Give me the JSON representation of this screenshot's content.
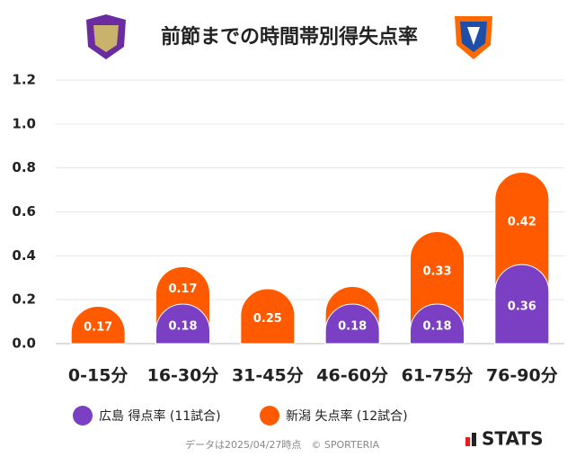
{
  "chart_data": {
    "type": "bar",
    "stacked": true,
    "title": "前節までの時間帯別得失点率",
    "categories": [
      "0-15分",
      "16-30分",
      "31-45分",
      "46-60分",
      "61-75分",
      "76-90分"
    ],
    "series": [
      {
        "name": "広島 得点率 (11試合)",
        "color": "#7b3fc4",
        "values": [
          0,
          0.18,
          0,
          0.18,
          0.18,
          0.36
        ],
        "value_labels": [
          null,
          "0.18",
          null,
          "0.18",
          "0.18",
          "0.36"
        ]
      },
      {
        "name": "新潟 失点率 (12試合)",
        "color": "#ff5a00",
        "values": [
          0.17,
          0.17,
          0.25,
          0.08,
          0.33,
          0.42
        ],
        "value_labels": [
          "0.17",
          "0.17",
          "0.25",
          null,
          "0.33",
          "0.42"
        ]
      }
    ],
    "ylim": [
      0,
      1.2
    ],
    "yticks": [
      {
        "value": 0,
        "label": "0.0"
      },
      0.2,
      0.4,
      0.6,
      0.8,
      {
        "value": 1,
        "label": "1.0"
      },
      1.2
    ],
    "grid": true,
    "footer": "データは2025/04/27時点　© SPORTERIA",
    "brand": "STATS"
  }
}
